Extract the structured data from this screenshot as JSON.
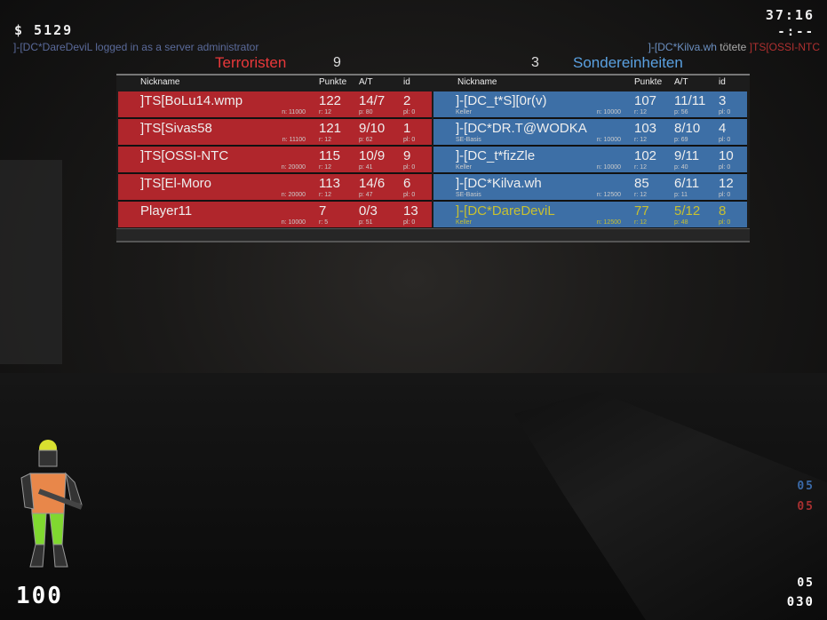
{
  "hud": {
    "money": "$ 5129",
    "timer": "37:16",
    "round_time": "-:--",
    "health": "100",
    "count_ct": "05",
    "count_t": "05",
    "ammo_clip": "05",
    "ammo_reserve": "030"
  },
  "chat": "]-[DC*DareDeviL logged in as a server administrator",
  "killfeed": {
    "killer": "]-[DC*Kilva.wh",
    "verb": "tötete",
    "victim": "]TS[OSSI-NTC"
  },
  "teams": {
    "t": {
      "name": "Terroristen",
      "score": "9",
      "color": "#b0262c"
    },
    "ct": {
      "name": "Sondereinheiten",
      "score": "3",
      "color": "#3d6fa6"
    }
  },
  "columns": {
    "nick": "Nickname",
    "points": "Punkte",
    "at": "A/T",
    "id": "id"
  },
  "t_players": [
    {
      "name": "]TS[BoLu14.wmp",
      "loc": "",
      "n": "n: 11000",
      "points": "122",
      "r": "r: 12",
      "at": "14/7",
      "p": "p: 80",
      "id": "2",
      "pl": "pl: 0"
    },
    {
      "name": "]TS[Sivas58",
      "loc": "",
      "n": "n: 11100",
      "points": "121",
      "r": "r: 12",
      "at": "9/10",
      "p": "p: 62",
      "id": "1",
      "pl": "pl: 0"
    },
    {
      "name": "]TS[OSSI-NTC",
      "loc": "",
      "n": "n: 20000",
      "points": "115",
      "r": "r: 12",
      "at": "10/9",
      "p": "p: 41",
      "id": "9",
      "pl": "pl: 0"
    },
    {
      "name": "]TS[El-Moro",
      "loc": "",
      "n": "n: 20000",
      "points": "113",
      "r": "r: 12",
      "at": "14/6",
      "p": "p: 47",
      "id": "6",
      "pl": "pl: 0"
    },
    {
      "name": "Player11",
      "loc": "",
      "n": "n: 10000",
      "points": "7",
      "r": "r: 5",
      "at": "0/3",
      "p": "p: 51",
      "id": "13",
      "pl": "pl: 0"
    }
  ],
  "ct_players": [
    {
      "name": "]-[DC_t*S][0r(v)",
      "loc": "Keller",
      "n": "n: 10000",
      "points": "107",
      "r": "r: 12",
      "at": "11/11",
      "p": "p: 56",
      "id": "3",
      "pl": "pl: 0"
    },
    {
      "name": "]-[DC*DR.T@WODKA",
      "loc": "SE-Basis",
      "n": "n: 10000",
      "points": "103",
      "r": "r: 12",
      "at": "8/10",
      "p": "p: 69",
      "id": "4",
      "pl": "pl: 0"
    },
    {
      "name": "]-[DC_t*fizZle",
      "loc": "Keller",
      "n": "n: 10000",
      "points": "102",
      "r": "r: 12",
      "at": "9/11",
      "p": "p: 40",
      "id": "10",
      "pl": "pl: 0"
    },
    {
      "name": "]-[DC*Kilva.wh",
      "loc": "SE-Basis",
      "n": "n: 12500",
      "points": "85",
      "r": "r: 12",
      "at": "6/11",
      "p": "p: 11",
      "id": "12",
      "pl": "pl: 0"
    },
    {
      "name": "]-[DC*DareDeviL",
      "loc": "Keller",
      "n": "n: 12500",
      "points": "77",
      "r": "r: 12",
      "at": "5/12",
      "p": "p: 48",
      "id": "8",
      "pl": "pl: 0",
      "self": true
    }
  ]
}
